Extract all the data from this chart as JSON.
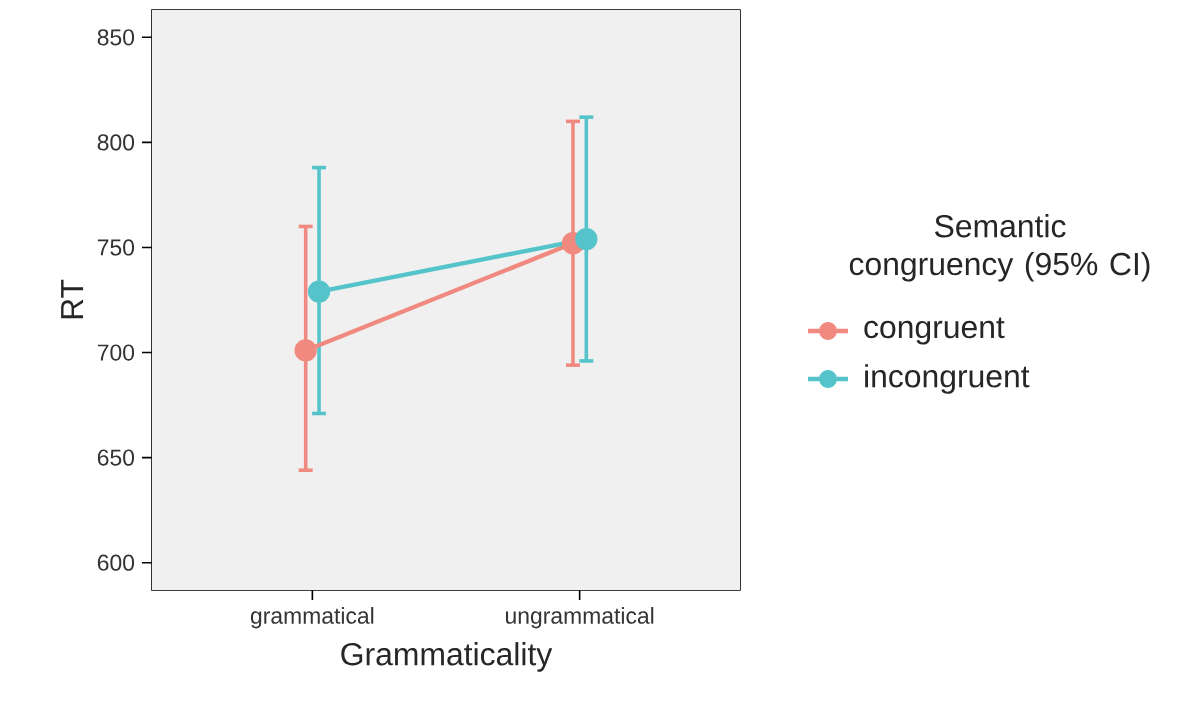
{
  "chart_data": {
    "type": "line",
    "xlabel": "Grammaticality",
    "ylabel": "RT",
    "legend_title": "Semantic congruency (95% CI)",
    "categories": [
      "grammatical",
      "ungrammatical"
    ],
    "series": [
      {
        "name": "congruent",
        "color": "#F08A80",
        "values": [
          701,
          752
        ],
        "errors": [
          [
            644,
            760
          ],
          [
            694,
            810
          ]
        ]
      },
      {
        "name": "incongruent",
        "color": "#55C4CA",
        "values": [
          729,
          754
        ],
        "errors": [
          [
            671,
            788
          ],
          [
            696,
            812
          ]
        ]
      }
    ],
    "ylim": [
      587,
      863
    ],
    "yticks": [
      600,
      650,
      700,
      750,
      800,
      850
    ],
    "legend": "right",
    "marker": "circle",
    "line_style": "solid"
  }
}
